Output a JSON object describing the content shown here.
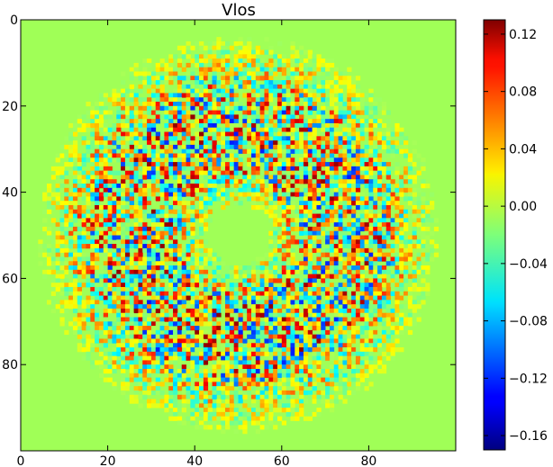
{
  "chart_data": {
    "type": "heatmap",
    "title": "Vlos",
    "xlabel": "",
    "ylabel": "",
    "xlim": [
      0,
      100
    ],
    "ylim": [
      100,
      0
    ],
    "x_ticks": [
      "0",
      "20",
      "40",
      "60",
      "80"
    ],
    "y_ticks": [
      "0",
      "20",
      "40",
      "60",
      "80"
    ],
    "grid_size": [
      100,
      100
    ],
    "colormap": "jet",
    "colorbar": {
      "range": [
        -0.17,
        0.13
      ],
      "ticks": [
        "0.12",
        "0.08",
        "0.04",
        "0.00",
        "−0.04",
        "−0.08",
        "−0.12",
        "−0.16"
      ]
    },
    "background_value": 0.0,
    "pattern": "noisy ring of positive and negative values centered near (50, 50), inner radius ~8, outer radius ~46, strongest amplitude in the annulus between radius ~15 and ~30"
  },
  "colors": {
    "background_map": "#a0ff57",
    "colormap_low": "#00007f",
    "colormap_high": "#7f0000"
  }
}
